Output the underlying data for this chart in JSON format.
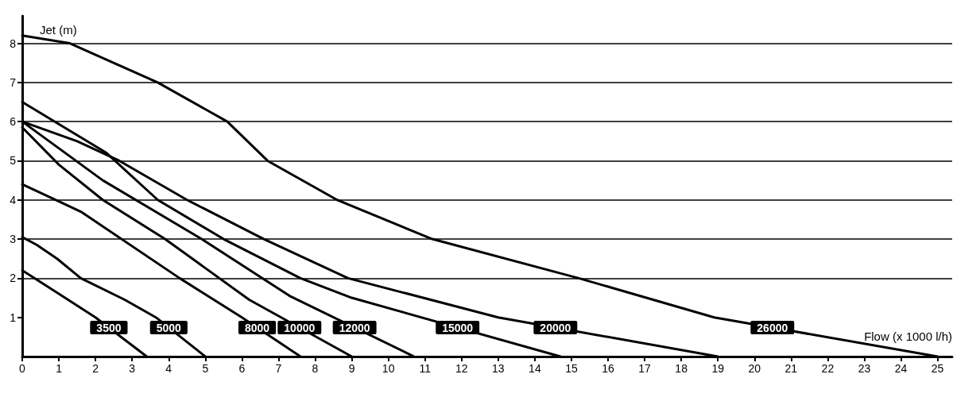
{
  "chart_data": {
    "type": "line",
    "xlabel": "Flow (x 1000 l/h)",
    "ylabel": "Jet (m)",
    "xlim": [
      0,
      25.4
    ],
    "ylim": [
      0,
      8.7
    ],
    "xticks": [
      0,
      1,
      2,
      3,
      4,
      5,
      6,
      7,
      8,
      9,
      10,
      11,
      12,
      13,
      14,
      15,
      16,
      17,
      18,
      19,
      20,
      21,
      22,
      23,
      24,
      25
    ],
    "yticks": [
      1,
      2,
      3,
      4,
      5,
      6,
      7,
      8
    ],
    "grid": "y",
    "legend": "bottom",
    "marker": "none",
    "line_style": "solid",
    "series": [
      {
        "name": "3500",
        "color": "#000000",
        "x": [
          0,
          1,
          2,
          3.4
        ],
        "values": [
          2.2,
          1.6,
          1.0,
          0
        ]
      },
      {
        "name": "5000",
        "color": "#000000",
        "x": [
          0,
          0.4,
          0.95,
          1.6,
          2.8,
          3.65,
          5
        ],
        "values": [
          3.05,
          2.85,
          2.5,
          2.0,
          1.45,
          1.0,
          0
        ]
      },
      {
        "name": "8000",
        "color": "#000000",
        "x": [
          0,
          1.6,
          4.3,
          6,
          7.6
        ],
        "values": [
          4.4,
          3.7,
          2.0,
          1.0,
          0
        ]
      },
      {
        "name": "10000",
        "color": "#000000",
        "x": [
          0,
          1,
          2.2,
          3.9,
          6.2,
          9
        ],
        "values": [
          5.85,
          4.9,
          4.0,
          3.0,
          1.45,
          0
        ]
      },
      {
        "name": "12000",
        "color": "#000000",
        "x": [
          0,
          2.2,
          4.9,
          7.3,
          10.7
        ],
        "values": [
          6.0,
          4.5,
          3.0,
          1.55,
          0
        ]
      },
      {
        "name": "15000",
        "color": "#000000",
        "x": [
          0,
          2.3,
          3.7,
          5.5,
          7.6,
          9,
          14.7
        ],
        "values": [
          6.5,
          5.2,
          4.0,
          3.0,
          2.0,
          1.5,
          0
        ]
      },
      {
        "name": "20000",
        "color": "#000000",
        "x": [
          0,
          1.5,
          2.65,
          4.5,
          6.6,
          8.9,
          13,
          19
        ],
        "values": [
          6.0,
          5.5,
          5.0,
          4.0,
          3.0,
          2.0,
          1.0,
          0
        ]
      },
      {
        "name": "26000",
        "color": "#000000",
        "x": [
          0,
          1.3,
          3.7,
          5.6,
          6.7,
          8.6,
          11.2,
          15.2,
          18.9,
          25
        ],
        "values": [
          8.2,
          8.0,
          7.0,
          6.0,
          5.0,
          4.0,
          3.0,
          2.0,
          1.0,
          0
        ]
      }
    ]
  }
}
